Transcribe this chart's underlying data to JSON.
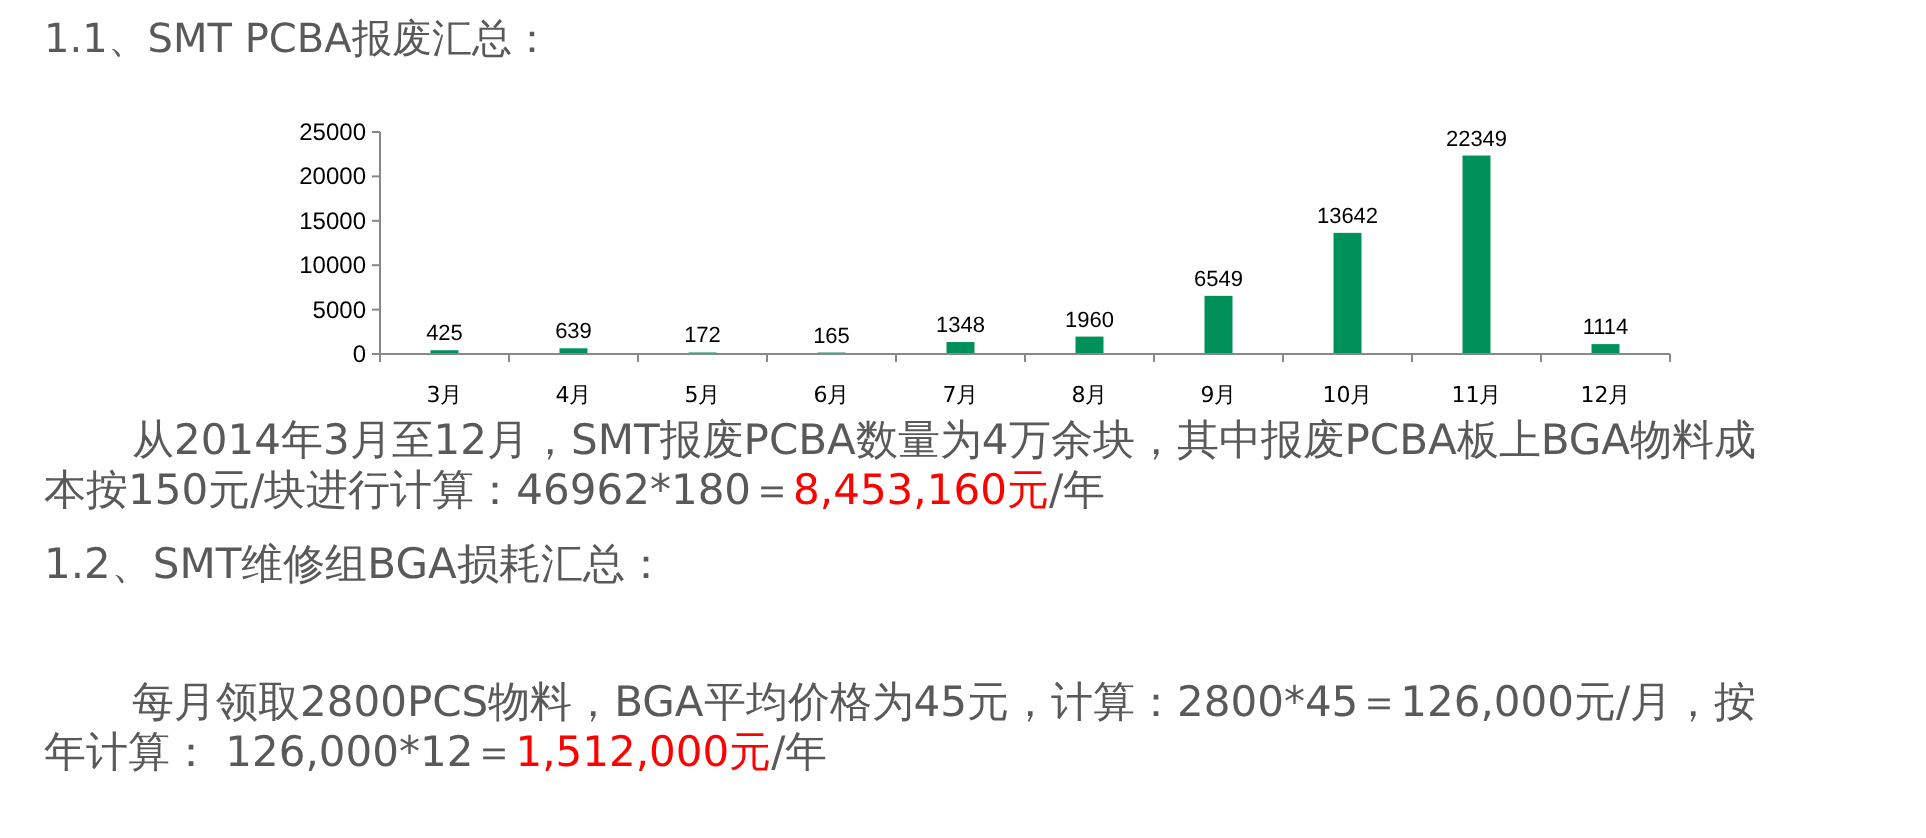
{
  "chart_data": {
    "type": "bar",
    "title": "1.1、SMT PCBA报废汇总：",
    "categories": [
      "3月",
      "4月",
      "5月",
      "6月",
      "7月",
      "8月",
      "9月",
      "10月",
      "11月",
      "12月"
    ],
    "values": [
      425,
      639,
      172,
      165,
      1348,
      1960,
      6549,
      13642,
      22349,
      1114
    ],
    "color": "#00915a",
    "ylim": [
      0,
      25000
    ],
    "yticks": [
      0,
      5000,
      10000,
      15000,
      20000,
      25000
    ],
    "data_labels": true,
    "grid": false,
    "annotations": [
      "从2014年3月至12月，SMT报废PCBA数量为4万余块，其中报废PCBA板上BGA物料成",
      "本按150元/块进行计算：46962*180＝",
      "8,453,160元",
      "/年",
      "1.2、SMT维修组BGA损耗汇总：",
      "每月领取2800PCS物料，BGA平均价格为45元，计算：2800*45＝126,000元/月，按",
      "年计算： 126,000*12＝",
      "1,512,000元",
      "/年"
    ]
  }
}
